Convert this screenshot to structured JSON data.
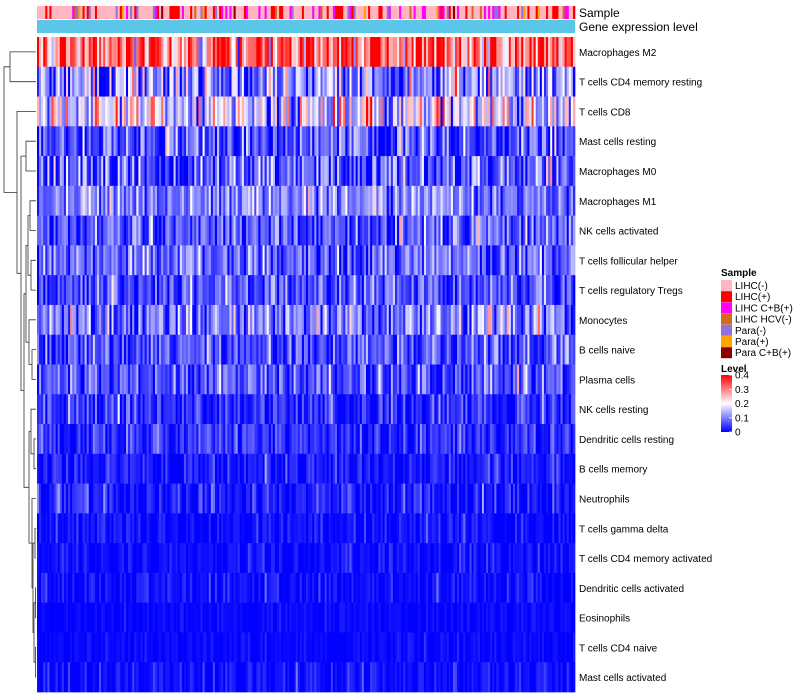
{
  "chart_data": {
    "type": "heatmap",
    "title": "",
    "column_annotations": [
      {
        "name": "Sample",
        "label": "Sample"
      },
      {
        "name": "Gene expression level",
        "label": "Gene expression level",
        "color": "#5bc6e8"
      }
    ],
    "rows": [
      {
        "label": "Macrophages M2",
        "mean": 0.32,
        "spread": 0.1
      },
      {
        "label": "T cells CD4 memory resting",
        "mean": 0.1,
        "spread": 0.09
      },
      {
        "label": "T cells CD8",
        "mean": 0.17,
        "spread": 0.09
      },
      {
        "label": "Mast cells resting",
        "mean": 0.06,
        "spread": 0.06
      },
      {
        "label": "Macrophages M0",
        "mean": 0.06,
        "spread": 0.07
      },
      {
        "label": "Macrophages M1",
        "mean": 0.1,
        "spread": 0.05
      },
      {
        "label": "NK cells activated",
        "mean": 0.07,
        "spread": 0.06
      },
      {
        "label": "T cells follicular helper",
        "mean": 0.08,
        "spread": 0.05
      },
      {
        "label": "T cells regulatory  Tregs",
        "mean": 0.06,
        "spread": 0.05
      },
      {
        "label": "Monocytes",
        "mean": 0.09,
        "spread": 0.07
      },
      {
        "label": "B cells naive",
        "mean": 0.06,
        "spread": 0.05
      },
      {
        "label": "Plasma cells",
        "mean": 0.06,
        "spread": 0.05
      },
      {
        "label": "NK cells resting",
        "mean": 0.03,
        "spread": 0.04
      },
      {
        "label": "Dendritic cells resting",
        "mean": 0.03,
        "spread": 0.04
      },
      {
        "label": "B cells memory",
        "mean": 0.02,
        "spread": 0.03
      },
      {
        "label": "Neutrophils",
        "mean": 0.02,
        "spread": 0.03
      },
      {
        "label": "T cells gamma delta",
        "mean": 0.01,
        "spread": 0.02
      },
      {
        "label": "T cells CD4 memory activated",
        "mean": 0.01,
        "spread": 0.02
      },
      {
        "label": "Dendritic cells activated",
        "mean": 0.01,
        "spread": 0.02
      },
      {
        "label": "Eosinophils",
        "mean": 0.005,
        "spread": 0.01
      },
      {
        "label": "T cells CD4 naive",
        "mean": 0.005,
        "spread": 0.01
      },
      {
        "label": "Mast cells activated",
        "mean": 0.01,
        "spread": 0.02
      }
    ],
    "n_columns": 260,
    "legend_sample": {
      "title": "Sample",
      "entries": [
        {
          "label": "LIHC(-)",
          "color": "#ffb6c1"
        },
        {
          "label": "LIHC(+)",
          "color": "#ff0000"
        },
        {
          "label": "LIHC C+B(+)",
          "color": "#ff00ff"
        },
        {
          "label": "LIHC HCV(-)",
          "color": "#d2691e"
        },
        {
          "label": "Para(-)",
          "color": "#9370db"
        },
        {
          "label": "Para(+)",
          "color": "#ffa500"
        },
        {
          "label": "Para C+B(+)",
          "color": "#8b0000"
        }
      ]
    },
    "legend_level": {
      "title": "Level",
      "ticks": [
        "0.4",
        "0.3",
        "0.2",
        "0.1",
        "0"
      ],
      "range": [
        0,
        0.4
      ],
      "colors": [
        "#0000ff",
        "#ffffff",
        "#ff0000"
      ]
    }
  }
}
